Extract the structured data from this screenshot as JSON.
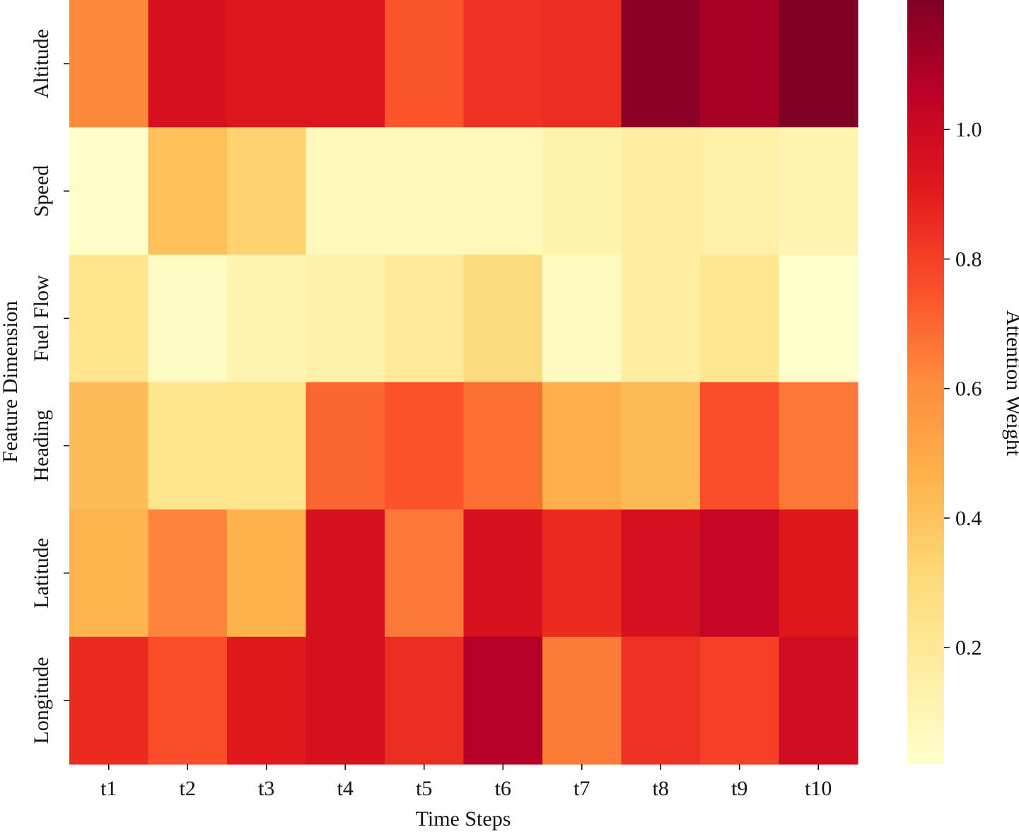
{
  "chart_data": {
    "type": "heatmap",
    "xlabel": "Time Steps",
    "ylabel": "Feature Dimension",
    "colorbar_label": "Attention Weight",
    "x_categories": [
      "t1",
      "t2",
      "t3",
      "t4",
      "t5",
      "t6",
      "t7",
      "t8",
      "t9",
      "t10"
    ],
    "y_categories": [
      "Altitude",
      "Speed",
      "Fuel Flow",
      "Heading",
      "Latitude",
      "Longitude"
    ],
    "values": [
      [
        0.62,
        0.95,
        0.93,
        0.93,
        0.74,
        0.84,
        0.85,
        1.17,
        1.1,
        1.2
      ],
      [
        0.03,
        0.41,
        0.34,
        0.08,
        0.08,
        0.08,
        0.13,
        0.16,
        0.14,
        0.11
      ],
      [
        0.23,
        0.05,
        0.11,
        0.14,
        0.19,
        0.29,
        0.06,
        0.16,
        0.22,
        0.02
      ],
      [
        0.42,
        0.23,
        0.23,
        0.7,
        0.75,
        0.68,
        0.48,
        0.43,
        0.76,
        0.66
      ],
      [
        0.45,
        0.63,
        0.46,
        0.95,
        0.66,
        0.95,
        0.86,
        0.96,
        1.02,
        0.92
      ],
      [
        0.86,
        0.76,
        0.91,
        0.95,
        0.85,
        1.07,
        0.65,
        0.84,
        0.8,
        0.98
      ]
    ],
    "colormap": "YlOrRd",
    "vmin": 0.02,
    "vmax": 1.2,
    "colorbar_ticks": [
      0.2,
      0.4,
      0.6,
      0.8,
      1.0
    ],
    "colorbar_tick_labels": [
      "0.2",
      "0.4",
      "0.6",
      "0.8",
      "1.0"
    ],
    "grid": false
  }
}
